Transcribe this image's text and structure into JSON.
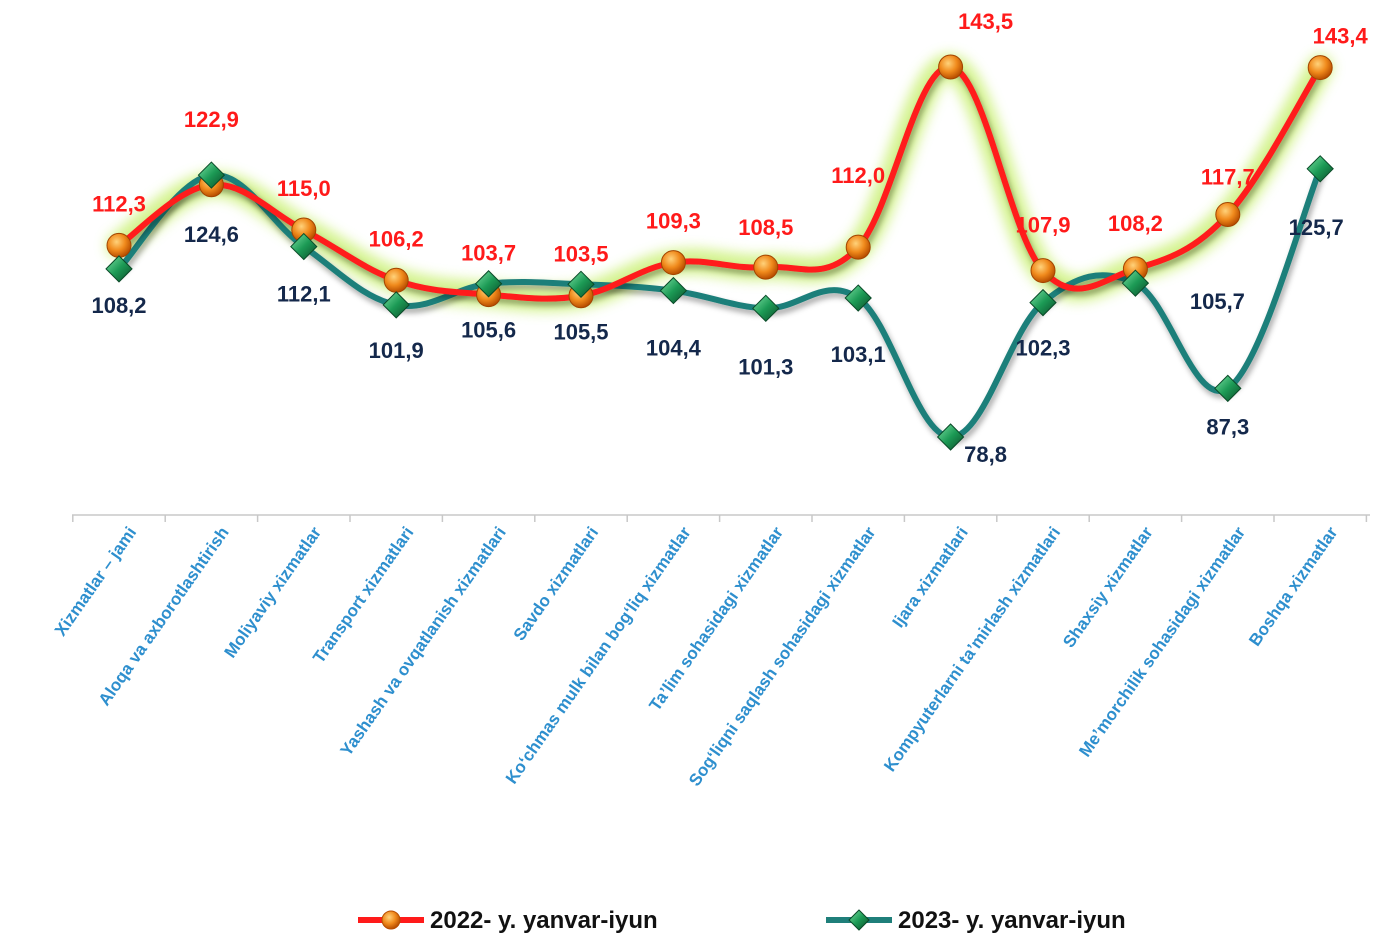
{
  "chart_data": {
    "type": "line",
    "categories": [
      "Xizmatlar – jami",
      "Aloqa va axborotlashtirish",
      "Moliyaviy xizmatlar",
      "Transport xizmatlari",
      "Yashash va ovqatlanish xizmatlari",
      "Savdo xizmatlari",
      "Koʻchmas mulk bilan bogʻliq xizmatlar",
      "Taʼlim sohasidagi xizmatlar",
      "Sogʻliqni saqlash sohasidagi xizmatlar",
      "Ijara xizmatlari",
      "Kompyuterlarni taʼmirlash xizmatlari",
      "Shaxsiy xizmatlar",
      "Meʼmorchilik sohasidagi xizmatlar",
      "Boshqa xizmatlar"
    ],
    "series": [
      {
        "name": "2022- y. yanvar-iyun",
        "color": "#ff1a1a",
        "values": [
          112.3,
          122.9,
          115.0,
          106.2,
          103.7,
          103.5,
          109.3,
          108.5,
          112.0,
          143.5,
          107.9,
          108.2,
          117.7,
          143.4
        ],
        "labels": [
          "112,3",
          "122,9",
          "115,0",
          "106,2",
          "103,7",
          "103,5",
          "109,3",
          "108,5",
          "112,0",
          "143,5",
          "107,9",
          "108,2",
          "117,7",
          "143,4"
        ]
      },
      {
        "name": "2023- y. yanvar-iyun",
        "color": "#1f7f7a",
        "values": [
          108.2,
          124.6,
          112.1,
          101.9,
          105.6,
          105.5,
          104.4,
          101.3,
          103.1,
          78.8,
          102.3,
          105.7,
          87.3,
          125.7
        ],
        "labels": [
          "108,2",
          "124,6",
          "112,1",
          "101,9",
          "105,6",
          "105,5",
          "104,4",
          "101,3",
          "103,1",
          "78,8",
          "102,3",
          "105,7",
          "87,3",
          "125,7"
        ]
      }
    ],
    "legend_position": "bottom",
    "grid": false,
    "category_label_color": "#2e8fce",
    "series_label_colors": [
      "#ff1a1a",
      "#14284b"
    ]
  }
}
